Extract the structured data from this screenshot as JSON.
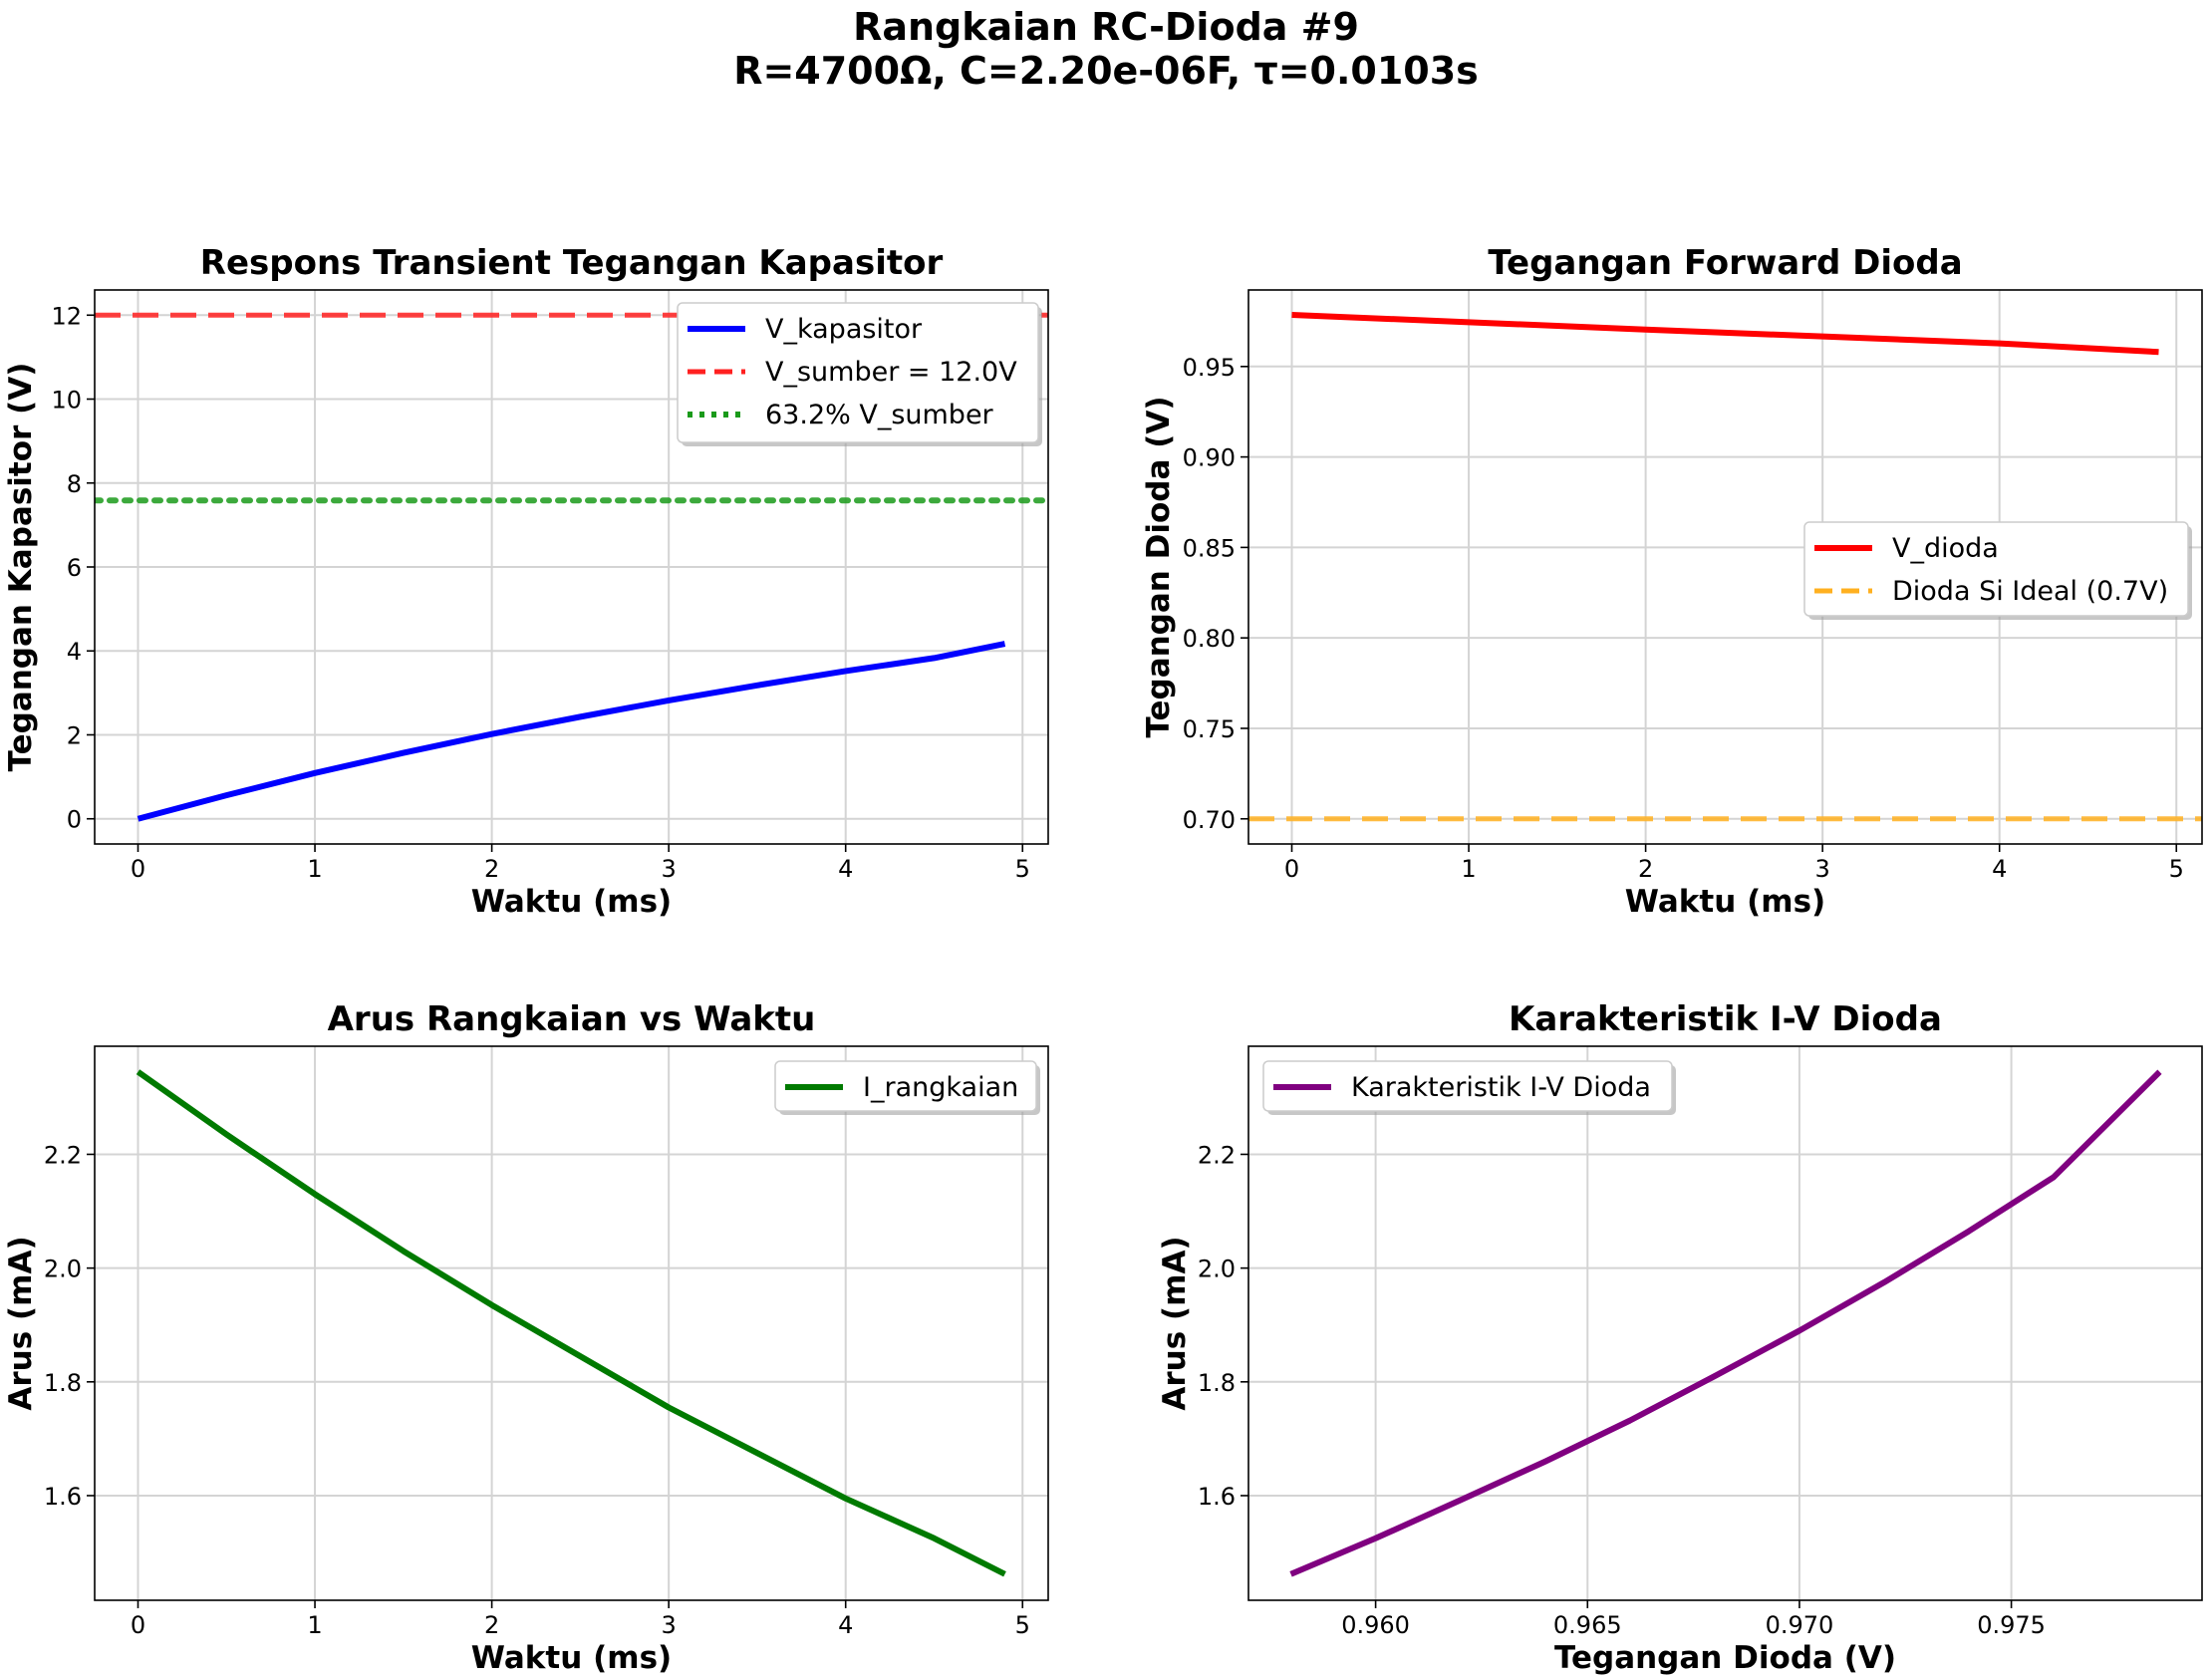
{
  "figure": {
    "title_line1": "Rangkaian RC-Dioda #9",
    "title_line2": "R=4700Ω, C=2.20e-06F, τ=0.0103s"
  },
  "chart_data": [
    {
      "type": "line",
      "title": "Respons Transient Tegangan Kapasitor",
      "xlabel": "Waktu (ms)",
      "ylabel": "Tegangan Kapasitor (V)",
      "xlim": [
        -0.245,
        5.145
      ],
      "ylim": [
        -0.6,
        12.6
      ],
      "xticks": [
        0,
        1,
        2,
        3,
        4,
        5
      ],
      "yticks": [
        0,
        2,
        4,
        6,
        8,
        10,
        12
      ],
      "ytick_decimals": 0,
      "xtick_decimals": 0,
      "grid": true,
      "legend_position": "upper right",
      "series": [
        {
          "name": "V_kapasitor",
          "color": "#0000ff",
          "style": "solid",
          "width": 6,
          "x": [
            0,
            0.5,
            1,
            1.5,
            2,
            2.5,
            3,
            3.5,
            4,
            4.5,
            4.9
          ],
          "y": [
            0,
            0.56,
            1.09,
            1.57,
            2.02,
            2.43,
            2.82,
            3.18,
            3.52,
            3.83,
            4.17
          ]
        },
        {
          "name": "V_sumber = 12.0V",
          "color": "#ff2020",
          "style": "dashed",
          "width": 5,
          "hline": 12.0
        },
        {
          "name": "63.2% V_sumber",
          "color": "#1a9a1a",
          "style": "dotted",
          "width": 6,
          "hline": 7.584
        }
      ]
    },
    {
      "type": "line",
      "title": "Tegangan Forward Dioda",
      "xlabel": "Waktu (ms)",
      "ylabel": "Tegangan Dioda (V)",
      "xlim": [
        -0.245,
        5.145
      ],
      "ylim": [
        0.6861,
        0.9923
      ],
      "xticks": [
        0,
        1,
        2,
        3,
        4,
        5
      ],
      "yticks": [
        0.7,
        0.75,
        0.8,
        0.85,
        0.9,
        0.95
      ],
      "ytick_decimals": 2,
      "xtick_decimals": 0,
      "grid": true,
      "legend_position": "center right",
      "series": [
        {
          "name": "V_dioda",
          "color": "#ff0000",
          "style": "solid",
          "width": 6,
          "x": [
            0,
            1,
            2,
            3,
            4,
            4.9
          ],
          "y": [
            0.9785,
            0.9745,
            0.9704,
            0.9666,
            0.9628,
            0.958
          ]
        },
        {
          "name": "Dioda Si Ideal (0.7V)",
          "color": "#ffb020",
          "style": "dashed",
          "width": 5,
          "hline": 0.7
        }
      ]
    },
    {
      "type": "line",
      "title": "Arus Rangkaian vs Waktu",
      "xlabel": "Waktu (ms)",
      "ylabel": "Arus (mA)",
      "xlim": [
        -0.245,
        5.145
      ],
      "ylim": [
        1.416,
        2.39
      ],
      "xticks": [
        0,
        1,
        2,
        3,
        4,
        5
      ],
      "yticks": [
        1.6,
        1.8,
        2.0,
        2.2
      ],
      "ytick_decimals": 1,
      "xtick_decimals": 0,
      "grid": true,
      "legend_position": "upper right",
      "series": [
        {
          "name": "I_rangkaian",
          "color": "#007a00",
          "style": "solid",
          "width": 6,
          "x": [
            0,
            0.5,
            1,
            1.5,
            2,
            2.5,
            3,
            3.5,
            4,
            4.5,
            4.9
          ],
          "y": [
            2.345,
            2.235,
            2.13,
            2.03,
            1.935,
            1.845,
            1.755,
            1.675,
            1.595,
            1.525,
            1.462
          ]
        }
      ]
    },
    {
      "type": "line",
      "title": "Karakteristik I-V Dioda",
      "xlabel": "Tegangan Dioda (V)",
      "ylabel": "Arus (mA)",
      "xlim": [
        0.957,
        0.9795
      ],
      "ylim": [
        1.416,
        2.39
      ],
      "xticks": [
        0.96,
        0.965,
        0.97,
        0.975
      ],
      "yticks": [
        1.6,
        1.8,
        2.0,
        2.2
      ],
      "ytick_decimals": 1,
      "xtick_decimals": 3,
      "grid": true,
      "legend_position": "upper left",
      "series": [
        {
          "name": "Karakteristik I-V Dioda",
          "color": "#800080",
          "style": "solid",
          "width": 6,
          "x": [
            0.958,
            0.96,
            0.962,
            0.964,
            0.966,
            0.968,
            0.97,
            0.972,
            0.974,
            0.976,
            0.9785
          ],
          "y": [
            1.462,
            1.525,
            1.592,
            1.66,
            1.732,
            1.81,
            1.89,
            1.975,
            2.065,
            2.16,
            2.345
          ]
        }
      ]
    }
  ]
}
